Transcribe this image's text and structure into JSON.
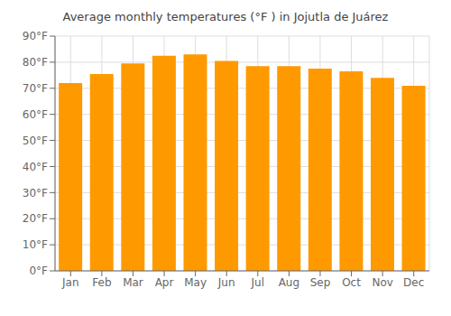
{
  "chart_data": {
    "type": "bar",
    "title": "Average monthly temperatures (°F ) in Jojutla de Juárez",
    "categories": [
      "Jan",
      "Feb",
      "Mar",
      "Apr",
      "May",
      "Jun",
      "Jul",
      "Aug",
      "Sep",
      "Oct",
      "Nov",
      "Dec"
    ],
    "values": [
      72,
      75.5,
      79.5,
      82.5,
      83,
      80.5,
      78.5,
      78.5,
      77.5,
      76.5,
      74,
      71
    ],
    "color": "#FF9900",
    "ylim": [
      0,
      90
    ],
    "yticks": [
      {
        "value": 0,
        "label": "0°F"
      },
      {
        "value": 10,
        "label": "10°F"
      },
      {
        "value": 20,
        "label": "20°F"
      },
      {
        "value": 30,
        "label": "30°F"
      },
      {
        "value": 40,
        "label": "40°F"
      },
      {
        "value": 50,
        "label": "50°F"
      },
      {
        "value": 60,
        "label": "60°F"
      },
      {
        "value": 70,
        "label": "70°F"
      },
      {
        "value": 80,
        "label": "80°F"
      },
      {
        "value": 90,
        "label": "90°F"
      }
    ],
    "grid": true
  }
}
